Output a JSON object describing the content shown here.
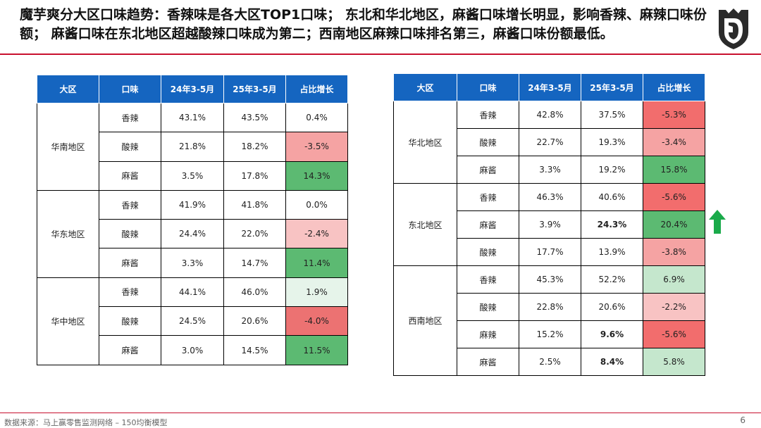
{
  "header": {
    "title": "魔芋爽分大区口味趋势：香辣味是各大区TOP1口味； 东北和华北地区，麻酱口味增长明显，影响香辣、麻辣口味份额； 麻酱口味在东北地区超越酸辣口味成为第二；西南地区麻辣口味排名第三，麻酱口味份额最低。"
  },
  "columns": [
    "大区",
    "口味",
    "24年3-5月",
    "25年3-5月",
    "占比增长"
  ],
  "left_table": {
    "groups": [
      {
        "region": "华南地区",
        "rows": [
          {
            "flavor": "香辣",
            "v24": "43.1%",
            "v25": "43.5%",
            "growth": "0.4%"
          },
          {
            "flavor": "酸辣",
            "v24": "21.8%",
            "v25": "18.2%",
            "growth": "-3.5%"
          },
          {
            "flavor": "麻酱",
            "v24": "3.5%",
            "v25": "17.8%",
            "growth": "14.3%"
          }
        ]
      },
      {
        "region": "华东地区",
        "rows": [
          {
            "flavor": "香辣",
            "v24": "41.9%",
            "v25": "41.8%",
            "growth": "0.0%"
          },
          {
            "flavor": "酸辣",
            "v24": "24.4%",
            "v25": "22.0%",
            "growth": "-2.4%"
          },
          {
            "flavor": "麻酱",
            "v24": "3.3%",
            "v25": "14.7%",
            "growth": "11.4%"
          }
        ]
      },
      {
        "region": "华中地区",
        "rows": [
          {
            "flavor": "香辣",
            "v24": "44.1%",
            "v25": "46.0%",
            "growth": "1.9%"
          },
          {
            "flavor": "酸辣",
            "v24": "24.5%",
            "v25": "20.6%",
            "growth": "-4.0%"
          },
          {
            "flavor": "麻酱",
            "v24": "3.0%",
            "v25": "14.5%",
            "growth": "11.5%"
          }
        ]
      }
    ]
  },
  "right_table": {
    "groups": [
      {
        "region": "华北地区",
        "rows": [
          {
            "flavor": "香辣",
            "v24": "42.8%",
            "v25": "37.5%",
            "growth": "-5.3%"
          },
          {
            "flavor": "酸辣",
            "v24": "22.7%",
            "v25": "19.3%",
            "growth": "-3.4%"
          },
          {
            "flavor": "麻酱",
            "v24": "3.3%",
            "v25": "19.2%",
            "growth": "15.8%"
          }
        ]
      },
      {
        "region": "东北地区",
        "rows": [
          {
            "flavor": "香辣",
            "v24": "46.3%",
            "v25": "40.6%",
            "growth": "-5.6%"
          },
          {
            "flavor": "麻酱",
            "v24": "3.9%",
            "v25": "24.3%",
            "growth": "20.4%"
          },
          {
            "flavor": "酸辣",
            "v24": "17.7%",
            "v25": "13.9%",
            "growth": "-3.8%"
          }
        ]
      },
      {
        "region": "西南地区",
        "rows": [
          {
            "flavor": "香辣",
            "v24": "45.3%",
            "v25": "52.2%",
            "growth": "6.9%"
          },
          {
            "flavor": "酸辣",
            "v24": "22.8%",
            "v25": "20.6%",
            "growth": "-2.2%"
          },
          {
            "flavor": "麻辣",
            "v24": "15.2%",
            "v25": "9.6%",
            "growth": "-5.6%"
          },
          {
            "flavor": "麻酱",
            "v24": "2.5%",
            "v25": "8.4%",
            "growth": "5.8%"
          }
        ]
      }
    ]
  },
  "colors": {
    "header_blue": "#1565c0",
    "accent_red": "#c8102e",
    "highlight_text_red": "#e02020",
    "arrow_green": "#1aaa4a"
  },
  "footer": {
    "source": "数据来源：马上赢零售监测网络 – 150均衡模型",
    "page": "6"
  }
}
